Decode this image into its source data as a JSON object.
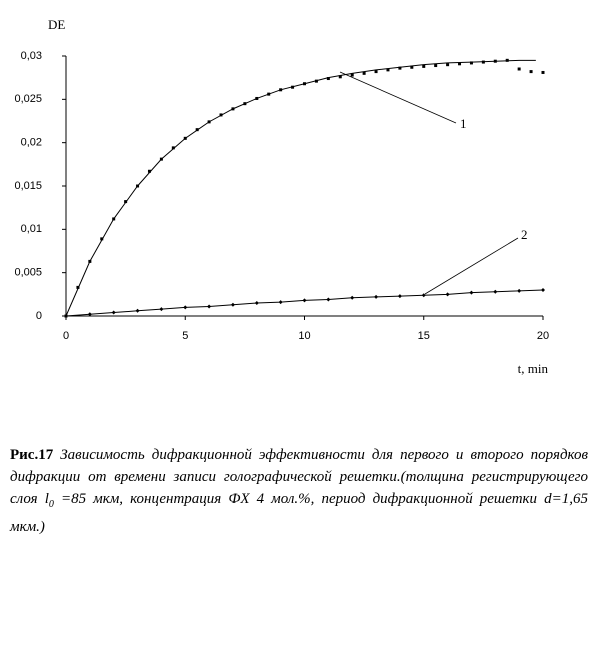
{
  "chart_data": {
    "type": "line",
    "y_label": "DE",
    "x_label": "t, min",
    "xlim": [
      0,
      20
    ],
    "xticks": [
      0,
      5,
      10,
      15,
      20
    ],
    "ylim": [
      0,
      0.03
    ],
    "yticks": [
      0,
      {
        "value": 0.005,
        "label": "0,005"
      },
      {
        "value": 0.01,
        "label": "0,01"
      },
      {
        "value": 0.015,
        "label": "0,015"
      },
      {
        "value": 0.02,
        "label": "0,02"
      },
      {
        "value": 0.025,
        "label": "0,025"
      },
      {
        "value": 0.03,
        "label": "0,03"
      }
    ],
    "grid": false,
    "series": [
      {
        "style": "markers",
        "color": "#000000",
        "x": [
          0,
          0.5,
          1,
          1.5,
          2,
          2.5,
          3,
          3.5,
          4,
          4.5,
          5,
          5.5,
          6,
          6.5,
          7,
          7.5,
          8,
          8.5,
          9,
          9.5,
          10,
          10.5,
          11,
          11.5,
          12,
          12.5,
          13,
          13.5,
          14,
          14.5,
          15,
          15.5,
          16,
          16.5,
          17,
          17.5,
          18,
          18.5,
          19,
          19.5,
          20
        ],
        "values": [
          0,
          0.0033,
          0.0063,
          0.0089,
          0.0112,
          0.0132,
          0.015,
          0.0167,
          0.0181,
          0.0194,
          0.0205,
          0.0215,
          0.0224,
          0.0232,
          0.0239,
          0.0245,
          0.0251,
          0.0256,
          0.0261,
          0.0264,
          0.0268,
          0.0271,
          0.0274,
          0.0276,
          0.0278,
          0.028,
          0.0282,
          0.0284,
          0.0286,
          0.0287,
          0.0288,
          0.0289,
          0.029,
          0.0291,
          0.0292,
          0.0293,
          0.0294,
          0.0295,
          0.0285,
          0.0282,
          0.0281
        ]
      },
      {
        "style": "line",
        "color": "#000000",
        "x": [
          0,
          1,
          2,
          3,
          4,
          5,
          6,
          7,
          8,
          9,
          10,
          11,
          12,
          13,
          14,
          15,
          16,
          17,
          18,
          19,
          19.7
        ],
        "values": [
          0,
          0.0063,
          0.0112,
          0.015,
          0.0181,
          0.0205,
          0.0224,
          0.0239,
          0.0251,
          0.0261,
          0.0268,
          0.0275,
          0.028,
          0.0284,
          0.0287,
          0.029,
          0.0292,
          0.0293,
          0.0294,
          0.0295,
          0.0295
        ]
      },
      {
        "style": "line-markers",
        "color": "#000000",
        "x": [
          0,
          1,
          2,
          3,
          4,
          5,
          6,
          7,
          8,
          9,
          10,
          11,
          12,
          13,
          14,
          15,
          16,
          17,
          18,
          19,
          20
        ],
        "values": [
          0,
          0.0002,
          0.0004,
          0.0006,
          0.0008,
          0.001,
          0.0011,
          0.0013,
          0.0015,
          0.0016,
          0.0018,
          0.0019,
          0.0021,
          0.0022,
          0.0023,
          0.0024,
          0.0025,
          0.0027,
          0.0028,
          0.0029,
          0.003
        ]
      }
    ],
    "annotations": [
      "1",
      "2"
    ]
  },
  "caption": {
    "label": "Рис.17",
    "text_before": " Зависимость дифракционной эффективности для первого и второго порядков дифракции от времени записи голографической решетки.(толщина регистрирующего слоя  ",
    "symbol": "l",
    "subscript": "0",
    "text_after": " =85 мкм, концентрация ФХ 4 мол.%, период дифракционной решетки d=1,65 мкм.)"
  }
}
